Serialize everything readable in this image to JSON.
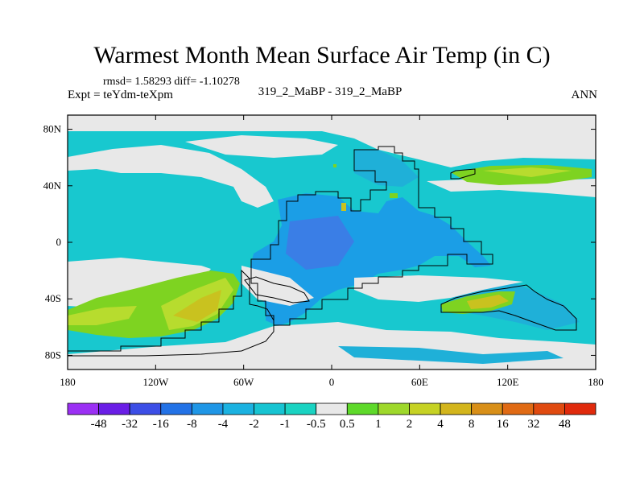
{
  "title": "Warmest Month Mean Surface Air Temp (in C)",
  "stats": "rmsd= 1.58293 diff= -1.10278",
  "expt": "Expt = teYdm-teXpm",
  "center_label": "319_2_MaBP - 319_2_MaBP",
  "annotation": "ANN",
  "colors": {
    "ocean_light": "#18c8cf",
    "ocean_mid": "#1fb0d8",
    "land_blue": "#1b9ee6",
    "land_deep": "#3a7ee6",
    "neutral": "#e8e8e8",
    "green": "#7ed321",
    "yellow_green": "#b7dc2e",
    "olive": "#c9c21f",
    "coast": "#000000"
  },
  "chart_data": {
    "type": "heatmap",
    "title": "Warmest Month Mean Surface Air Temp (in C)",
    "x_axis": {
      "range": [
        -180,
        180
      ],
      "ticks": [
        -180,
        -120,
        -60,
        0,
        60,
        120,
        180
      ],
      "tick_labels": [
        "180",
        "120W",
        "60W",
        "0",
        "60E",
        "120E",
        "180"
      ]
    },
    "y_axis": {
      "range": [
        -90,
        90
      ],
      "ticks": [
        80,
        40,
        0,
        -40,
        -80
      ],
      "tick_labels": [
        "80N",
        "40N",
        "0",
        "40S",
        "80S"
      ]
    },
    "colorbar": {
      "colors": [
        "#9b30f4",
        "#6a1ee6",
        "#3c4ee6",
        "#2372e6",
        "#1f96e6",
        "#1bb2e1",
        "#17c4d2",
        "#1ad3c2",
        "#e8e8e8",
        "#5ed92a",
        "#9ed82b",
        "#c6d224",
        "#d3b51c",
        "#d88f18",
        "#e06a14",
        "#e04a10",
        "#e02a0c"
      ],
      "labels": [
        "-48",
        "-32",
        "-16",
        "-8",
        "-4",
        "-2",
        "-1",
        "-0.5",
        "0.5",
        "1",
        "2",
        "4",
        "8",
        "16",
        "32",
        "48"
      ]
    }
  }
}
